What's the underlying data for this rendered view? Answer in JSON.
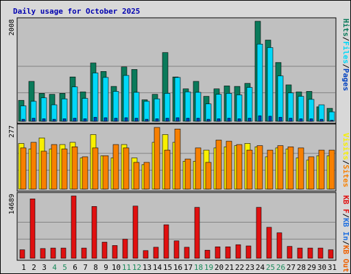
{
  "title": "Daily usage for October 2025",
  "colors": {
    "title": "#0000b0",
    "background": "#d8d8d8",
    "plot_bg": "#c0c0c0",
    "grid": "#808080",
    "hits": "#0a7a5a",
    "files": "#00d8f8",
    "pages": "#0040c0",
    "visits": "#f8f000",
    "sites": "#f88000",
    "kb_in": "#2070e0",
    "kb_out": "#f06000",
    "kb_f": "#e01010",
    "weekend_day": "#1a8a5a",
    "weekday_day": "#000000"
  },
  "legend": {
    "top": [
      "Hits",
      "/",
      "Files",
      "/",
      "Pages"
    ],
    "middle": [
      "Visits",
      "/",
      "Sites"
    ],
    "bottom": [
      "KB F",
      "/",
      "KB In",
      "/",
      "KB Out"
    ]
  },
  "chart_data": [
    {
      "type": "bar",
      "panel": "hits-files-pages",
      "max_label": "2008",
      "categories": [
        "1",
        "2",
        "3",
        "4",
        "5",
        "6",
        "7",
        "8",
        "9",
        "10",
        "11",
        "12",
        "13",
        "14",
        "15",
        "16",
        "17",
        "18",
        "19",
        "20",
        "21",
        "22",
        "23",
        "24",
        "25",
        "26",
        "27",
        "28",
        "29",
        "30",
        "31"
      ],
      "weekend_days": [
        4,
        5,
        11,
        12,
        18,
        19,
        25,
        26
      ],
      "ylim": [
        0,
        2008
      ],
      "series": [
        {
          "name": "Hits",
          "values": [
            420,
            800,
            560,
            540,
            560,
            890,
            590,
            1170,
            1000,
            700,
            1090,
            1040,
            430,
            540,
            1380,
            890,
            650,
            800,
            500,
            650,
            710,
            700,
            760,
            2008,
            1630,
            1180,
            730,
            590,
            600,
            290,
            260
          ]
        },
        {
          "name": "Files",
          "values": [
            310,
            400,
            470,
            330,
            450,
            690,
            460,
            970,
            880,
            600,
            920,
            580,
            400,
            450,
            560,
            880,
            590,
            580,
            350,
            540,
            560,
            530,
            680,
            1550,
            1480,
            910,
            570,
            500,
            440,
            330,
            190
          ]
        },
        {
          "name": "Pages",
          "values": [
            40,
            60,
            50,
            40,
            50,
            60,
            50,
            80,
            70,
            60,
            70,
            60,
            40,
            50,
            60,
            70,
            60,
            60,
            40,
            50,
            60,
            50,
            60,
            110,
            100,
            80,
            60,
            50,
            50,
            40,
            20
          ]
        }
      ]
    },
    {
      "type": "bar",
      "panel": "visits-sites",
      "max_label": "277",
      "categories": [
        "1",
        "2",
        "3",
        "4",
        "5",
        "6",
        "7",
        "8",
        "9",
        "10",
        "11",
        "12",
        "13",
        "14",
        "15",
        "16",
        "17",
        "18",
        "19",
        "20",
        "21",
        "22",
        "23",
        "24",
        "25",
        "26",
        "27",
        "28",
        "29",
        "30",
        "31"
      ],
      "ylim": [
        0,
        277
      ],
      "series": [
        {
          "name": "Visits",
          "values": [
            205,
            180,
            230,
            180,
            200,
            210,
            140,
            245,
            150,
            140,
            200,
            140,
            110,
            210,
            245,
            210,
            125,
            125,
            175,
            185,
            190,
            195,
            205,
            190,
            145,
            185,
            180,
            140,
            130,
            150,
            150
          ]
        },
        {
          "name": "Sites",
          "values": [
            185,
            210,
            170,
            200,
            180,
            190,
            145,
            185,
            150,
            200,
            185,
            120,
            120,
            277,
            175,
            270,
            135,
            185,
            120,
            220,
            215,
            200,
            175,
            195,
            175,
            195,
            190,
            185,
            145,
            175,
            175
          ]
        }
      ]
    },
    {
      "type": "bar",
      "panel": "kbytes",
      "max_label": "14689",
      "categories": [
        "1",
        "2",
        "3",
        "4",
        "5",
        "6",
        "7",
        "8",
        "9",
        "10",
        "11",
        "12",
        "13",
        "14",
        "15",
        "16",
        "17",
        "18",
        "19",
        "20",
        "21",
        "22",
        "23",
        "24",
        "25",
        "26",
        "27",
        "28",
        "29",
        "30",
        "31"
      ],
      "ylim": [
        0,
        14689
      ],
      "series": [
        {
          "name": "KB F",
          "values": [
            2000,
            14000,
            2300,
            2400,
            2400,
            14689,
            2400,
            12200,
            3800,
            3000,
            4500,
            12300,
            1800,
            2600,
            7900,
            4100,
            2600,
            12000,
            1900,
            2700,
            2700,
            3200,
            2900,
            12000,
            7300,
            6000,
            2800,
            2400,
            2400,
            2400,
            2000
          ]
        }
      ]
    }
  ]
}
